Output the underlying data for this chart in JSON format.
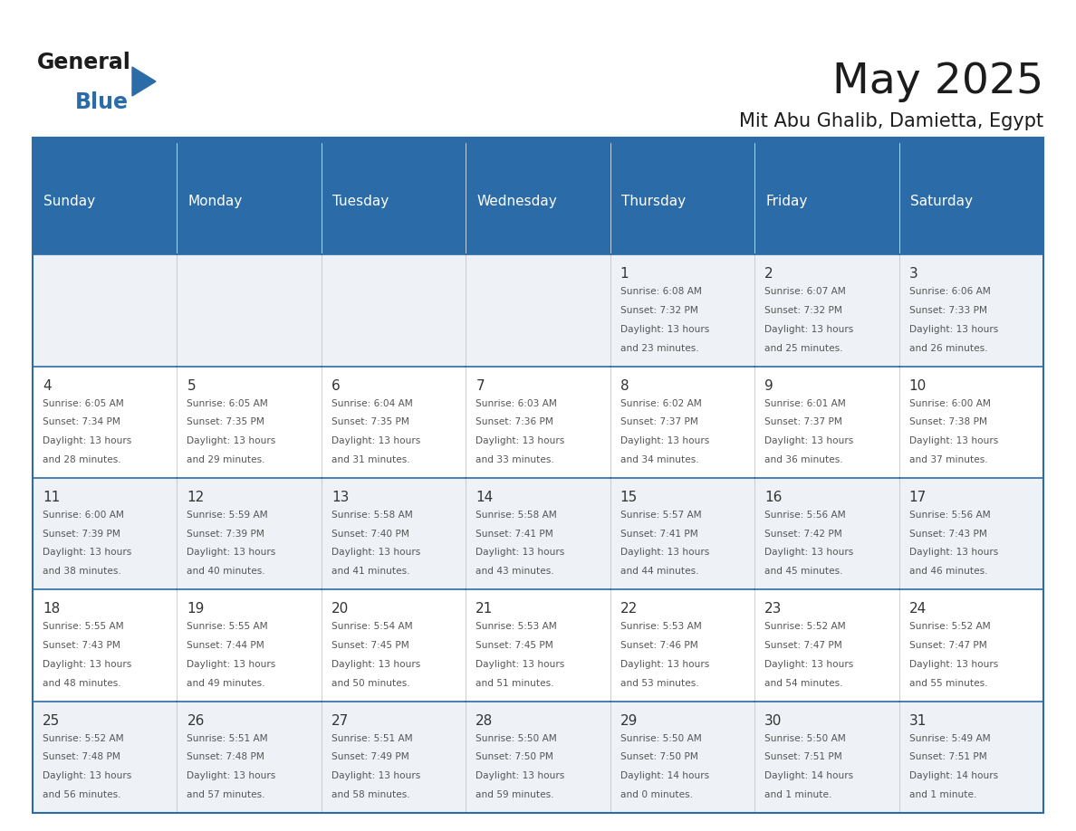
{
  "title": "May 2025",
  "subtitle": "Mit Abu Ghalib, Damietta, Egypt",
  "header_color": "#2B6CA8",
  "header_text_color": "#FFFFFF",
  "background_color": "#FFFFFF",
  "row_colors": [
    "#EEF2F7",
    "#FFFFFF"
  ],
  "border_color": "#2B6CA8",
  "text_color_main": "#333333",
  "text_color_info": "#555555",
  "day_headers": [
    "Sunday",
    "Monday",
    "Tuesday",
    "Wednesday",
    "Thursday",
    "Friday",
    "Saturday"
  ],
  "days": [
    {
      "day": 1,
      "col": 4,
      "row": 0,
      "sunrise": "6:08 AM",
      "sunset": "7:32 PM",
      "daylight": "13 hours and 23 minutes"
    },
    {
      "day": 2,
      "col": 5,
      "row": 0,
      "sunrise": "6:07 AM",
      "sunset": "7:32 PM",
      "daylight": "13 hours and 25 minutes"
    },
    {
      "day": 3,
      "col": 6,
      "row": 0,
      "sunrise": "6:06 AM",
      "sunset": "7:33 PM",
      "daylight": "13 hours and 26 minutes"
    },
    {
      "day": 4,
      "col": 0,
      "row": 1,
      "sunrise": "6:05 AM",
      "sunset": "7:34 PM",
      "daylight": "13 hours and 28 minutes"
    },
    {
      "day": 5,
      "col": 1,
      "row": 1,
      "sunrise": "6:05 AM",
      "sunset": "7:35 PM",
      "daylight": "13 hours and 29 minutes"
    },
    {
      "day": 6,
      "col": 2,
      "row": 1,
      "sunrise": "6:04 AM",
      "sunset": "7:35 PM",
      "daylight": "13 hours and 31 minutes"
    },
    {
      "day": 7,
      "col": 3,
      "row": 1,
      "sunrise": "6:03 AM",
      "sunset": "7:36 PM",
      "daylight": "13 hours and 33 minutes"
    },
    {
      "day": 8,
      "col": 4,
      "row": 1,
      "sunrise": "6:02 AM",
      "sunset": "7:37 PM",
      "daylight": "13 hours and 34 minutes"
    },
    {
      "day": 9,
      "col": 5,
      "row": 1,
      "sunrise": "6:01 AM",
      "sunset": "7:37 PM",
      "daylight": "13 hours and 36 minutes"
    },
    {
      "day": 10,
      "col": 6,
      "row": 1,
      "sunrise": "6:00 AM",
      "sunset": "7:38 PM",
      "daylight": "13 hours and 37 minutes"
    },
    {
      "day": 11,
      "col": 0,
      "row": 2,
      "sunrise": "6:00 AM",
      "sunset": "7:39 PM",
      "daylight": "13 hours and 38 minutes"
    },
    {
      "day": 12,
      "col": 1,
      "row": 2,
      "sunrise": "5:59 AM",
      "sunset": "7:39 PM",
      "daylight": "13 hours and 40 minutes"
    },
    {
      "day": 13,
      "col": 2,
      "row": 2,
      "sunrise": "5:58 AM",
      "sunset": "7:40 PM",
      "daylight": "13 hours and 41 minutes"
    },
    {
      "day": 14,
      "col": 3,
      "row": 2,
      "sunrise": "5:58 AM",
      "sunset": "7:41 PM",
      "daylight": "13 hours and 43 minutes"
    },
    {
      "day": 15,
      "col": 4,
      "row": 2,
      "sunrise": "5:57 AM",
      "sunset": "7:41 PM",
      "daylight": "13 hours and 44 minutes"
    },
    {
      "day": 16,
      "col": 5,
      "row": 2,
      "sunrise": "5:56 AM",
      "sunset": "7:42 PM",
      "daylight": "13 hours and 45 minutes"
    },
    {
      "day": 17,
      "col": 6,
      "row": 2,
      "sunrise": "5:56 AM",
      "sunset": "7:43 PM",
      "daylight": "13 hours and 46 minutes"
    },
    {
      "day": 18,
      "col": 0,
      "row": 3,
      "sunrise": "5:55 AM",
      "sunset": "7:43 PM",
      "daylight": "13 hours and 48 minutes"
    },
    {
      "day": 19,
      "col": 1,
      "row": 3,
      "sunrise": "5:55 AM",
      "sunset": "7:44 PM",
      "daylight": "13 hours and 49 minutes"
    },
    {
      "day": 20,
      "col": 2,
      "row": 3,
      "sunrise": "5:54 AM",
      "sunset": "7:45 PM",
      "daylight": "13 hours and 50 minutes"
    },
    {
      "day": 21,
      "col": 3,
      "row": 3,
      "sunrise": "5:53 AM",
      "sunset": "7:45 PM",
      "daylight": "13 hours and 51 minutes"
    },
    {
      "day": 22,
      "col": 4,
      "row": 3,
      "sunrise": "5:53 AM",
      "sunset": "7:46 PM",
      "daylight": "13 hours and 53 minutes"
    },
    {
      "day": 23,
      "col": 5,
      "row": 3,
      "sunrise": "5:52 AM",
      "sunset": "7:47 PM",
      "daylight": "13 hours and 54 minutes"
    },
    {
      "day": 24,
      "col": 6,
      "row": 3,
      "sunrise": "5:52 AM",
      "sunset": "7:47 PM",
      "daylight": "13 hours and 55 minutes"
    },
    {
      "day": 25,
      "col": 0,
      "row": 4,
      "sunrise": "5:52 AM",
      "sunset": "7:48 PM",
      "daylight": "13 hours and 56 minutes"
    },
    {
      "day": 26,
      "col": 1,
      "row": 4,
      "sunrise": "5:51 AM",
      "sunset": "7:48 PM",
      "daylight": "13 hours and 57 minutes"
    },
    {
      "day": 27,
      "col": 2,
      "row": 4,
      "sunrise": "5:51 AM",
      "sunset": "7:49 PM",
      "daylight": "13 hours and 58 minutes"
    },
    {
      "day": 28,
      "col": 3,
      "row": 4,
      "sunrise": "5:50 AM",
      "sunset": "7:50 PM",
      "daylight": "13 hours and 59 minutes"
    },
    {
      "day": 29,
      "col": 4,
      "row": 4,
      "sunrise": "5:50 AM",
      "sunset": "7:50 PM",
      "daylight": "14 hours and 0 minutes"
    },
    {
      "day": 30,
      "col": 5,
      "row": 4,
      "sunrise": "5:50 AM",
      "sunset": "7:51 PM",
      "daylight": "14 hours and 1 minute"
    },
    {
      "day": 31,
      "col": 6,
      "row": 4,
      "sunrise": "5:49 AM",
      "sunset": "7:51 PM",
      "daylight": "14 hours and 1 minute"
    }
  ]
}
